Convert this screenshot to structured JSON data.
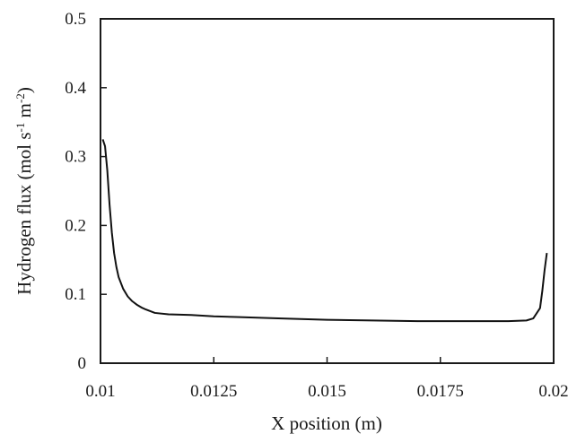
{
  "chart_data": {
    "type": "line",
    "title": "",
    "xlabel": "X position (m)",
    "ylabel": {
      "pre": "Hydrogen flux (mol s",
      "exp1": "-1",
      "mid": " m",
      "exp2": "-2",
      "post": ")"
    },
    "xlim": [
      0.01,
      0.02
    ],
    "ylim": [
      0,
      0.5
    ],
    "x_ticks": [
      "0.01",
      "0.0125",
      "0.015",
      "0.0175",
      "0.02"
    ],
    "y_ticks": [
      "0",
      "0.1",
      "0.2",
      "0.3",
      "0.4",
      "0.5"
    ],
    "grid": false,
    "legend": "none",
    "series": [
      {
        "x": [
          0.01005,
          0.0101,
          0.01015,
          0.0102,
          0.01025,
          0.0103,
          0.01035,
          0.0104,
          0.0105,
          0.0106,
          0.0107,
          0.0108,
          0.0109,
          0.011,
          0.0112,
          0.0115,
          0.012,
          0.0125,
          0.013,
          0.014,
          0.015,
          0.016,
          0.017,
          0.018,
          0.019,
          0.0194,
          0.01955,
          0.0197,
          0.01975,
          0.0198,
          0.01985
        ],
        "y": [
          0.325,
          0.315,
          0.28,
          0.23,
          0.19,
          0.16,
          0.14,
          0.125,
          0.108,
          0.097,
          0.09,
          0.085,
          0.081,
          0.078,
          0.073,
          0.071,
          0.07,
          0.068,
          0.067,
          0.065,
          0.063,
          0.062,
          0.061,
          0.061,
          0.061,
          0.062,
          0.065,
          0.08,
          0.105,
          0.135,
          0.16
        ]
      }
    ]
  }
}
